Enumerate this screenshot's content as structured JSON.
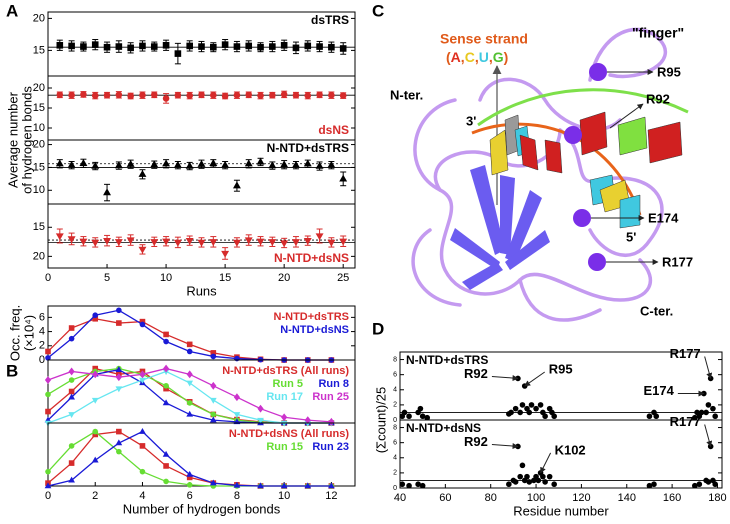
{
  "panel_labels": [
    "A",
    "B",
    "C",
    "D"
  ],
  "chart_data": [
    {
      "type": "errorbar",
      "title": "dsTRS",
      "title_color": "#000000",
      "label_corner": "upper right",
      "ylabel": [
        "Average number",
        "of hydrogen bonds"
      ],
      "x": [
        1,
        2,
        3,
        4,
        5,
        6,
        7,
        8,
        9,
        10,
        11,
        12,
        13,
        14,
        15,
        16,
        17,
        18,
        19,
        20,
        21,
        22,
        23,
        24,
        25
      ],
      "values": [
        15.8,
        15.7,
        15.6,
        15.9,
        15.5,
        15.6,
        15.4,
        15.7,
        15.6,
        15.8,
        14.5,
        15.7,
        15.6,
        15.5,
        15.9,
        15.6,
        15.7,
        15.5,
        15.6,
        15.8,
        15.4,
        15.7,
        15.6,
        15.5,
        15.3
      ],
      "errors": [
        0.8,
        0.8,
        0.7,
        0.8,
        0.8,
        0.9,
        0.8,
        0.8,
        0.7,
        0.8,
        1.6,
        0.8,
        0.8,
        0.7,
        0.8,
        0.8,
        0.8,
        0.7,
        0.8,
        0.8,
        0.9,
        0.8,
        0.8,
        0.8,
        0.9
      ],
      "color": "#000000",
      "marker": "square",
      "hlines": [
        {
          "value": 15.5,
          "style": "solid"
        }
      ],
      "xlim": [
        0,
        26
      ],
      "ylim": [
        11,
        21
      ],
      "yticks": [
        15,
        20
      ]
    },
    {
      "type": "errorbar",
      "title": "dsNS",
      "title_color": "#d62b2b",
      "label_corner": "lower right",
      "x": [
        1,
        2,
        3,
        4,
        5,
        6,
        7,
        8,
        9,
        10,
        11,
        12,
        13,
        14,
        15,
        16,
        17,
        18,
        19,
        20,
        21,
        22,
        23,
        24,
        25
      ],
      "values": [
        18.3,
        18.2,
        18.4,
        18.1,
        18.2,
        18.3,
        18.0,
        18.2,
        18.3,
        17.4,
        18.2,
        18.1,
        18.3,
        18.2,
        18.0,
        18.2,
        18.3,
        18.1,
        18.2,
        18.4,
        18.2,
        18.1,
        18.3,
        18.2,
        18.1
      ],
      "errors": [
        0.7,
        0.8,
        0.7,
        0.8,
        0.7,
        0.8,
        0.7,
        0.8,
        0.7,
        1.2,
        0.7,
        0.8,
        0.7,
        0.8,
        0.7,
        0.8,
        0.7,
        0.8,
        0.7,
        0.8,
        0.7,
        0.8,
        0.7,
        0.8,
        0.7
      ],
      "color": "#d62b2b",
      "marker": "circle",
      "hlines": [
        {
          "value": 18.2,
          "style": "solid"
        }
      ],
      "xlim": [
        0,
        26
      ],
      "ylim": [
        7,
        23
      ],
      "yticks": [
        10,
        15,
        20
      ]
    },
    {
      "type": "errorbar",
      "title": "N-NTD+dsTRS",
      "title_color": "#000000",
      "label_corner": "upper right",
      "x": [
        1,
        2,
        3,
        4,
        5,
        6,
        7,
        8,
        9,
        10,
        11,
        12,
        13,
        14,
        15,
        16,
        17,
        18,
        19,
        20,
        21,
        22,
        23,
        24,
        25
      ],
      "values": [
        15.8,
        15.5,
        15.9,
        15.3,
        9.5,
        15.4,
        15.7,
        13.5,
        15.6,
        15.8,
        15.5,
        15.3,
        15.7,
        15.9,
        15.5,
        11.0,
        15.8,
        16.2,
        15.4,
        15.6,
        15.5,
        15.8,
        15.3,
        15.5,
        12.5
      ],
      "errors": [
        0.9,
        0.8,
        0.9,
        0.8,
        1.8,
        0.8,
        0.9,
        1.0,
        0.8,
        0.9,
        0.8,
        0.8,
        0.9,
        0.8,
        0.8,
        1.2,
        0.9,
        0.8,
        0.8,
        0.9,
        0.8,
        0.8,
        0.9,
        0.8,
        1.5
      ],
      "color": "#000000",
      "marker": "triangle-up",
      "hlines": [
        {
          "value": 15,
          "style": "solid"
        },
        {
          "value": 15.8,
          "style": "dotted"
        }
      ],
      "xlim": [
        0,
        26
      ],
      "ylim": [
        7,
        21
      ],
      "yticks": [
        10,
        15,
        20
      ]
    },
    {
      "type": "errorbar",
      "title": "N-NTD+dsNS",
      "title_color": "#d62b2b",
      "label_corner": "lower right",
      "xlabel": "Runs",
      "x": [
        1,
        2,
        3,
        4,
        5,
        6,
        7,
        8,
        9,
        10,
        11,
        12,
        13,
        14,
        15,
        16,
        17,
        18,
        19,
        20,
        21,
        22,
        23,
        24,
        25
      ],
      "values": [
        16.5,
        17.0,
        17.4,
        17.6,
        17.3,
        17.5,
        17.2,
        18.8,
        17.5,
        17.4,
        17.6,
        17.3,
        17.6,
        17.5,
        19.5,
        17.6,
        17.2,
        17.4,
        17.5,
        17.7,
        17.5,
        17.3,
        16.5,
        17.6,
        17.4
      ],
      "errors": [
        1.2,
        1.0,
        0.8,
        0.8,
        0.9,
        0.8,
        0.9,
        0.8,
        0.8,
        0.8,
        0.9,
        0.8,
        0.8,
        0.9,
        1.0,
        0.8,
        0.9,
        0.8,
        0.8,
        0.8,
        0.9,
        0.8,
        1.2,
        0.8,
        0.9
      ],
      "color": "#d62b2b",
      "marker": "triangle-down",
      "hlines": [
        {
          "value": 17.6,
          "style": "solid"
        },
        {
          "value": 17.2,
          "style": "dotted"
        }
      ],
      "xlim": [
        0,
        26
      ],
      "ylim": [
        22,
        11
      ],
      "yticks": [
        15,
        20
      ],
      "xticks": [
        0,
        5,
        10,
        15,
        20,
        25
      ]
    },
    {
      "type": "line",
      "ylabel": [
        "Occ. freq.",
        "(×10⁴)"
      ],
      "legend": "upper right",
      "x": [
        0,
        1,
        2,
        3,
        4,
        5,
        6,
        7,
        8,
        9,
        10,
        11,
        12
      ],
      "series": [
        {
          "name": "N-NTD+dsTRS",
          "color": "#d62b2b",
          "marker": "square",
          "values": [
            1.2,
            4.5,
            5.8,
            5.2,
            5.4,
            3.6,
            2.2,
            1.0,
            0.4,
            0.1,
            0,
            0,
            0
          ]
        },
        {
          "name": "N-NTD+dsNS",
          "color": "#1a1ad6",
          "marker": "circle",
          "values": [
            0.3,
            3.0,
            6.3,
            7.0,
            5.0,
            2.6,
            1.2,
            0.5,
            0.2,
            0.05,
            0,
            0,
            0
          ]
        }
      ],
      "xlim": [
        0,
        13
      ],
      "ylim": [
        0,
        7.6
      ],
      "yticks": [
        0,
        2,
        4,
        6
      ]
    },
    {
      "type": "line",
      "legend": "upper right",
      "x": [
        0,
        1,
        2,
        3,
        4,
        5,
        6,
        7,
        8,
        9,
        10,
        11,
        12
      ],
      "series": [
        {
          "name": "N-NTD+dsTRS (All runs)",
          "color": "#d62b2b",
          "marker": "square",
          "values": [
            0.2,
            0.55,
            0.95,
            0.85,
            0.9,
            0.6,
            0.37,
            0.15,
            0.06,
            0.02,
            0,
            0,
            0
          ]
        },
        {
          "name": "Run 5",
          "color": "#66dd33",
          "marker": "circle",
          "values": [
            0.5,
            0.75,
            0.9,
            0.95,
            0.85,
            0.65,
            0.35,
            0.15,
            0.05,
            0.01,
            0,
            0,
            0
          ]
        },
        {
          "name": "Run 8",
          "color": "#1a1ad6",
          "marker": "triangle-up",
          "values": [
            0.05,
            0.45,
            0.85,
            0.93,
            0.7,
            0.35,
            0.15,
            0.05,
            0.02,
            0,
            0,
            0,
            0
          ]
        },
        {
          "name": "Run 17",
          "color": "#66e6f0",
          "marker": "triangle-down",
          "values": [
            0,
            0.15,
            0.4,
            0.6,
            0.75,
            0.9,
            0.7,
            0.4,
            0.15,
            0.05,
            0,
            0,
            0
          ]
        },
        {
          "name": "Run 25",
          "color": "#cc33cc",
          "marker": "diamond",
          "values": [
            0.75,
            0.9,
            0.85,
            0.8,
            0.85,
            0.95,
            0.85,
            0.65,
            0.45,
            0.25,
            0.1,
            0.05,
            0.02
          ]
        }
      ],
      "xlim": [
        0,
        13
      ],
      "ylim": [
        0,
        1.1
      ]
    },
    {
      "type": "line",
      "legend": "upper right",
      "xlabel": "Number of hydrogen bonds",
      "x": [
        0,
        1,
        2,
        3,
        4,
        5,
        6,
        7,
        8,
        9,
        10,
        11,
        12
      ],
      "series": [
        {
          "name": "N-NTD+dsNS (All runs)",
          "color": "#d62b2b",
          "marker": "square",
          "values": [
            0.05,
            0.4,
            0.9,
            0.95,
            0.7,
            0.35,
            0.15,
            0.05,
            0.02,
            0,
            0,
            0,
            0
          ]
        },
        {
          "name": "Run 15",
          "color": "#66dd33",
          "marker": "circle",
          "values": [
            0.25,
            0.7,
            0.95,
            0.6,
            0.25,
            0.08,
            0.02,
            0,
            0,
            0,
            0,
            0,
            0
          ]
        },
        {
          "name": "Run 23",
          "color": "#1a1ad6",
          "marker": "triangle-up",
          "values": [
            0,
            0.1,
            0.45,
            0.75,
            0.95,
            0.55,
            0.2,
            0.05,
            0.01,
            0,
            0,
            0,
            0
          ]
        }
      ],
      "xlim": [
        0,
        13
      ],
      "ylim": [
        0,
        1.1
      ],
      "xticks": [
        0,
        2,
        4,
        6,
        8,
        10,
        12
      ]
    },
    {
      "type": "scatter",
      "title": "N-NTD+dsTRS",
      "title_color": "#000000",
      "label_corner": "upper left",
      "ylabel": [
        "(Σcount)/25"
      ],
      "x": [
        41,
        42,
        44,
        48,
        49,
        50,
        52,
        88,
        89,
        91,
        92,
        93,
        94,
        95,
        96,
        97,
        98,
        100,
        102,
        103,
        104,
        106,
        107,
        108,
        150,
        152,
        153,
        170,
        171,
        172,
        173,
        174,
        175,
        176,
        177,
        178,
        179
      ],
      "values": [
        0.5,
        1,
        0.5,
        1,
        1.5,
        0.5,
        0.3,
        0.8,
        1,
        1.5,
        5.5,
        1,
        2,
        4.5,
        1.5,
        1,
        2,
        1.5,
        2,
        1,
        0.5,
        1.5,
        1,
        0.5,
        0.5,
        1,
        0.5,
        0.3,
        1,
        0.5,
        1,
        3.5,
        1,
        2,
        5.5,
        1.5,
        0.5
      ],
      "color": "#000000",
      "hlines": [
        {
          "value": 1,
          "style": "solid"
        }
      ],
      "annotations": [
        {
          "text": "R92",
          "x": 92,
          "y": 5.5
        },
        {
          "text": "R95",
          "x": 95,
          "y": 4.5
        },
        {
          "text": "E174",
          "x": 174,
          "y": 3.5
        },
        {
          "text": "R177",
          "x": 177,
          "y": 5.5
        }
      ],
      "xlim": [
        40,
        182
      ],
      "ylim": [
        0,
        9
      ],
      "yticks": [
        0,
        2,
        4,
        6,
        8
      ]
    },
    {
      "type": "scatter",
      "title": "N-NTD+dsNS",
      "title_color": "#000000",
      "label_corner": "upper left",
      "xlabel": "Residue number",
      "x": [
        41,
        44,
        48,
        50,
        88,
        90,
        91,
        92,
        93,
        94,
        95,
        96,
        97,
        99,
        100,
        101,
        102,
        103,
        104,
        106,
        108,
        150,
        152,
        170,
        172,
        175,
        176,
        177,
        178,
        179
      ],
      "values": [
        0.5,
        0.3,
        0.5,
        0.3,
        0.5,
        1,
        0.8,
        5.5,
        1.5,
        3,
        1,
        1.5,
        0.8,
        1,
        1.5,
        1,
        2,
        1.5,
        0.8,
        1.5,
        0.5,
        0.3,
        0.5,
        0.3,
        0.5,
        1,
        0.8,
        5.5,
        1,
        0.5
      ],
      "color": "#000000",
      "hlines": [
        {
          "value": 1,
          "style": "solid"
        }
      ],
      "annotations": [
        {
          "text": "R92",
          "x": 92,
          "y": 5.5
        },
        {
          "text": "K102",
          "x": 102,
          "y": 2
        },
        {
          "text": "R177",
          "x": 177,
          "y": 5.5
        }
      ],
      "xlim": [
        40,
        182
      ],
      "ylim": [
        0,
        9
      ],
      "yticks": [
        0,
        2,
        4,
        6,
        8
      ],
      "xticks": [
        40,
        60,
        80,
        100,
        120,
        140,
        160,
        180
      ]
    }
  ],
  "structure": {
    "sense_strand": "Sense strand",
    "bases": [
      {
        "text": "(",
        "color": "#e05a1a"
      },
      {
        "text": "A",
        "color": "#e03020"
      },
      {
        "text": ",",
        "color": "#e05a1a"
      },
      {
        "text": "C",
        "color": "#e8c820"
      },
      {
        "text": ",",
        "color": "#e05a1a"
      },
      {
        "text": "U",
        "color": "#40c8e0"
      },
      {
        "text": ",",
        "color": "#e05a1a"
      },
      {
        "text": "G",
        "color": "#50c030"
      },
      {
        "text": ")",
        "color": "#e05a1a"
      }
    ],
    "finger": "\"finger\"",
    "n_ter": "N-ter.",
    "c_ter": "C-ter.",
    "end3": "3'",
    "end5": "5'",
    "residues": [
      "R95",
      "R92",
      "E174",
      "R177"
    ]
  }
}
